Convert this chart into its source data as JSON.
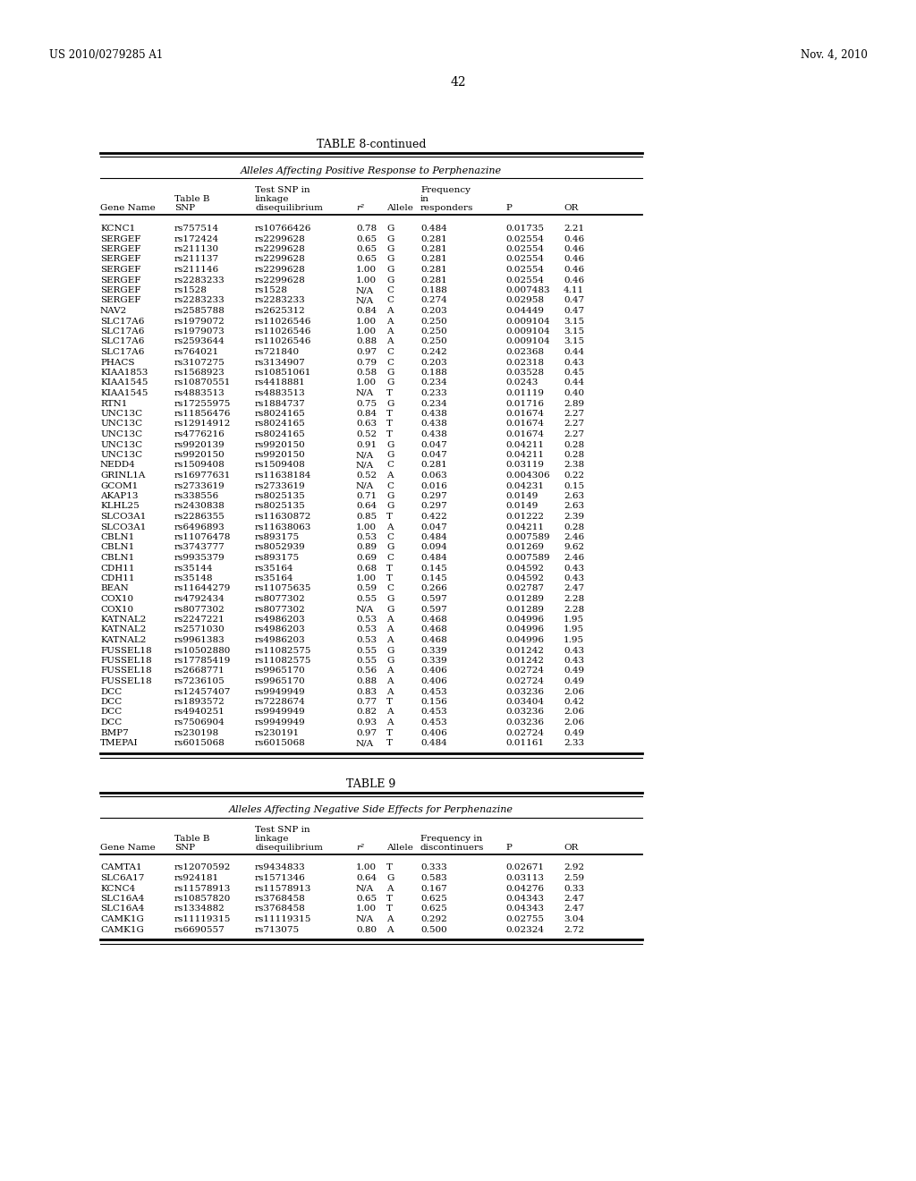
{
  "header_left": "US 2010/0279285 A1",
  "header_right": "Nov. 4, 2010",
  "page_number": "42",
  "table8_title": "TABLE 8-continued",
  "table8_subtitle": "Alleles Affecting Positive Response to Perphenazine",
  "table9_title": "TABLE 9",
  "table9_subtitle": "Alleles Affecting Negative Side Effects for Perphenazine",
  "table8_data": [
    [
      "KCNC1",
      "rs757514",
      "rs10766426",
      "0.78",
      "G",
      "0.484",
      "0.01735",
      "2.21"
    ],
    [
      "SERGEF",
      "rs172424",
      "rs2299628",
      "0.65",
      "G",
      "0.281",
      "0.02554",
      "0.46"
    ],
    [
      "SERGEF",
      "rs211130",
      "rs2299628",
      "0.65",
      "G",
      "0.281",
      "0.02554",
      "0.46"
    ],
    [
      "SERGEF",
      "rs211137",
      "rs2299628",
      "0.65",
      "G",
      "0.281",
      "0.02554",
      "0.46"
    ],
    [
      "SERGEF",
      "rs211146",
      "rs2299628",
      "1.00",
      "G",
      "0.281",
      "0.02554",
      "0.46"
    ],
    [
      "SERGEF",
      "rs2283233",
      "rs2299628",
      "1.00",
      "G",
      "0.281",
      "0.02554",
      "0.46"
    ],
    [
      "SERGEF",
      "rs1528",
      "rs1528",
      "N/A",
      "C",
      "0.188",
      "0.007483",
      "4.11"
    ],
    [
      "SERGEF",
      "rs2283233",
      "rs2283233",
      "N/A",
      "C",
      "0.274",
      "0.02958",
      "0.47"
    ],
    [
      "NAV2",
      "rs2585788",
      "rs2625312",
      "0.84",
      "A",
      "0.203",
      "0.04449",
      "0.47"
    ],
    [
      "SLC17A6",
      "rs1979072",
      "rs11026546",
      "1.00",
      "A",
      "0.250",
      "0.009104",
      "3.15"
    ],
    [
      "SLC17A6",
      "rs1979073",
      "rs11026546",
      "1.00",
      "A",
      "0.250",
      "0.009104",
      "3.15"
    ],
    [
      "SLC17A6",
      "rs2593644",
      "rs11026546",
      "0.88",
      "A",
      "0.250",
      "0.009104",
      "3.15"
    ],
    [
      "SLC17A6",
      "rs764021",
      "rs721840",
      "0.97",
      "C",
      "0.242",
      "0.02368",
      "0.44"
    ],
    [
      "PHACS",
      "rs3107275",
      "rs3134907",
      "0.79",
      "C",
      "0.203",
      "0.02318",
      "0.43"
    ],
    [
      "KIAA1853",
      "rs1568923",
      "rs10851061",
      "0.58",
      "G",
      "0.188",
      "0.03528",
      "0.45"
    ],
    [
      "KIAA1545",
      "rs10870551",
      "rs4418881",
      "1.00",
      "G",
      "0.234",
      "0.0243",
      "0.44"
    ],
    [
      "KIAA1545",
      "rs4883513",
      "rs4883513",
      "N/A",
      "T",
      "0.233",
      "0.01119",
      "0.40"
    ],
    [
      "RTN1",
      "rs17255975",
      "rs1884737",
      "0.75",
      "G",
      "0.234",
      "0.01716",
      "2.89"
    ],
    [
      "UNC13C",
      "rs11856476",
      "rs8024165",
      "0.84",
      "T",
      "0.438",
      "0.01674",
      "2.27"
    ],
    [
      "UNC13C",
      "rs12914912",
      "rs8024165",
      "0.63",
      "T",
      "0.438",
      "0.01674",
      "2.27"
    ],
    [
      "UNC13C",
      "rs4776216",
      "rs8024165",
      "0.52",
      "T",
      "0.438",
      "0.01674",
      "2.27"
    ],
    [
      "UNC13C",
      "rs9920139",
      "rs9920150",
      "0.91",
      "G",
      "0.047",
      "0.04211",
      "0.28"
    ],
    [
      "UNC13C",
      "rs9920150",
      "rs9920150",
      "N/A",
      "G",
      "0.047",
      "0.04211",
      "0.28"
    ],
    [
      "NEDD4",
      "rs1509408",
      "rs1509408",
      "N/A",
      "C",
      "0.281",
      "0.03119",
      "2.38"
    ],
    [
      "GRINL1A",
      "rs16977631",
      "rs11638184",
      "0.52",
      "A",
      "0.063",
      "0.004306",
      "0.22"
    ],
    [
      "GCOM1",
      "rs2733619",
      "rs2733619",
      "N/A",
      "C",
      "0.016",
      "0.04231",
      "0.15"
    ],
    [
      "AKAP13",
      "rs338556",
      "rs8025135",
      "0.71",
      "G",
      "0.297",
      "0.0149",
      "2.63"
    ],
    [
      "KLHL25",
      "rs2430838",
      "rs8025135",
      "0.64",
      "G",
      "0.297",
      "0.0149",
      "2.63"
    ],
    [
      "SLCO3A1",
      "rs2286355",
      "rs11630872",
      "0.85",
      "T",
      "0.422",
      "0.01222",
      "2.39"
    ],
    [
      "SLCO3A1",
      "rs6496893",
      "rs11638063",
      "1.00",
      "A",
      "0.047",
      "0.04211",
      "0.28"
    ],
    [
      "CBLN1",
      "rs11076478",
      "rs893175",
      "0.53",
      "C",
      "0.484",
      "0.007589",
      "2.46"
    ],
    [
      "CBLN1",
      "rs3743777",
      "rs8052939",
      "0.89",
      "G",
      "0.094",
      "0.01269",
      "9.62"
    ],
    [
      "CBLN1",
      "rs9935379",
      "rs893175",
      "0.69",
      "C",
      "0.484",
      "0.007589",
      "2.46"
    ],
    [
      "CDH11",
      "rs35144",
      "rs35164",
      "0.68",
      "T",
      "0.145",
      "0.04592",
      "0.43"
    ],
    [
      "CDH11",
      "rs35148",
      "rs35164",
      "1.00",
      "T",
      "0.145",
      "0.04592",
      "0.43"
    ],
    [
      "BEAN",
      "rs11644279",
      "rs11075635",
      "0.59",
      "C",
      "0.266",
      "0.02787",
      "2.47"
    ],
    [
      "COX10",
      "rs4792434",
      "rs8077302",
      "0.55",
      "G",
      "0.597",
      "0.01289",
      "2.28"
    ],
    [
      "COX10",
      "rs8077302",
      "rs8077302",
      "N/A",
      "G",
      "0.597",
      "0.01289",
      "2.28"
    ],
    [
      "KATNAL2",
      "rs2247221",
      "rs4986203",
      "0.53",
      "A",
      "0.468",
      "0.04996",
      "1.95"
    ],
    [
      "KATNAL2",
      "rs2571030",
      "rs4986203",
      "0.53",
      "A",
      "0.468",
      "0.04996",
      "1.95"
    ],
    [
      "KATNAL2",
      "rs9961383",
      "rs4986203",
      "0.53",
      "A",
      "0.468",
      "0.04996",
      "1.95"
    ],
    [
      "FUSSEL18",
      "rs10502880",
      "rs11082575",
      "0.55",
      "G",
      "0.339",
      "0.01242",
      "0.43"
    ],
    [
      "FUSSEL18",
      "rs17785419",
      "rs11082575",
      "0.55",
      "G",
      "0.339",
      "0.01242",
      "0.43"
    ],
    [
      "FUSSEL18",
      "rs2668771",
      "rs9965170",
      "0.56",
      "A",
      "0.406",
      "0.02724",
      "0.49"
    ],
    [
      "FUSSEL18",
      "rs7236105",
      "rs9965170",
      "0.88",
      "A",
      "0.406",
      "0.02724",
      "0.49"
    ],
    [
      "DCC",
      "rs12457407",
      "rs9949949",
      "0.83",
      "A",
      "0.453",
      "0.03236",
      "2.06"
    ],
    [
      "DCC",
      "rs1893572",
      "rs7228674",
      "0.77",
      "T",
      "0.156",
      "0.03404",
      "0.42"
    ],
    [
      "DCC",
      "rs4940251",
      "rs9949949",
      "0.82",
      "A",
      "0.453",
      "0.03236",
      "2.06"
    ],
    [
      "DCC",
      "rs7506904",
      "rs9949949",
      "0.93",
      "A",
      "0.453",
      "0.03236",
      "2.06"
    ],
    [
      "BMP7",
      "rs230198",
      "rs230191",
      "0.97",
      "T",
      "0.406",
      "0.02724",
      "0.49"
    ],
    [
      "TMEPAI",
      "rs6015068",
      "rs6015068",
      "N/A",
      "T",
      "0.484",
      "0.01161",
      "2.33"
    ]
  ],
  "table9_data": [
    [
      "CAMTA1",
      "rs12070592",
      "rs9434833",
      "1.00",
      "T",
      "0.333",
      "0.02671",
      "2.92"
    ],
    [
      "SLC6A17",
      "rs924181",
      "rs1571346",
      "0.64",
      "G",
      "0.583",
      "0.03113",
      "2.59"
    ],
    [
      "KCNC4",
      "rs11578913",
      "rs11578913",
      "N/A",
      "A",
      "0.167",
      "0.04276",
      "0.33"
    ],
    [
      "SLC16A4",
      "rs10857820",
      "rs3768458",
      "0.65",
      "T",
      "0.625",
      "0.04343",
      "2.47"
    ],
    [
      "SLC16A4",
      "rs1334882",
      "rs3768458",
      "1.00",
      "T",
      "0.625",
      "0.04343",
      "2.47"
    ],
    [
      "CAMK1G",
      "rs11119315",
      "rs11119315",
      "N/A",
      "A",
      "0.292",
      "0.02755",
      "3.04"
    ],
    [
      "CAMK1G",
      "rs6690557",
      "rs713075",
      "0.80",
      "A",
      "0.500",
      "0.02324",
      "2.72"
    ]
  ]
}
